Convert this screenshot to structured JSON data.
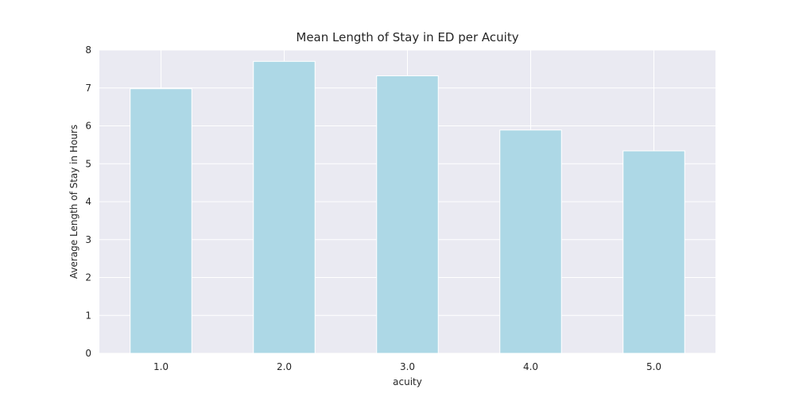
{
  "chart_data": {
    "type": "bar",
    "title": "Mean Length of Stay in ED per Acuity",
    "xlabel": "acuity",
    "ylabel": "Average Length of Stay in Hours",
    "categories": [
      "1.0",
      "2.0",
      "3.0",
      "4.0",
      "5.0"
    ],
    "values": [
      6.98,
      7.7,
      7.32,
      5.89,
      5.34
    ],
    "ylim": [
      0,
      8
    ],
    "yticks": [
      "0",
      "1",
      "2",
      "3",
      "4",
      "5",
      "6",
      "7",
      "8"
    ],
    "grid": true,
    "bar_color": "#add8e6",
    "background_color": "#eaeaf2",
    "grid_color": "#ffffff"
  }
}
